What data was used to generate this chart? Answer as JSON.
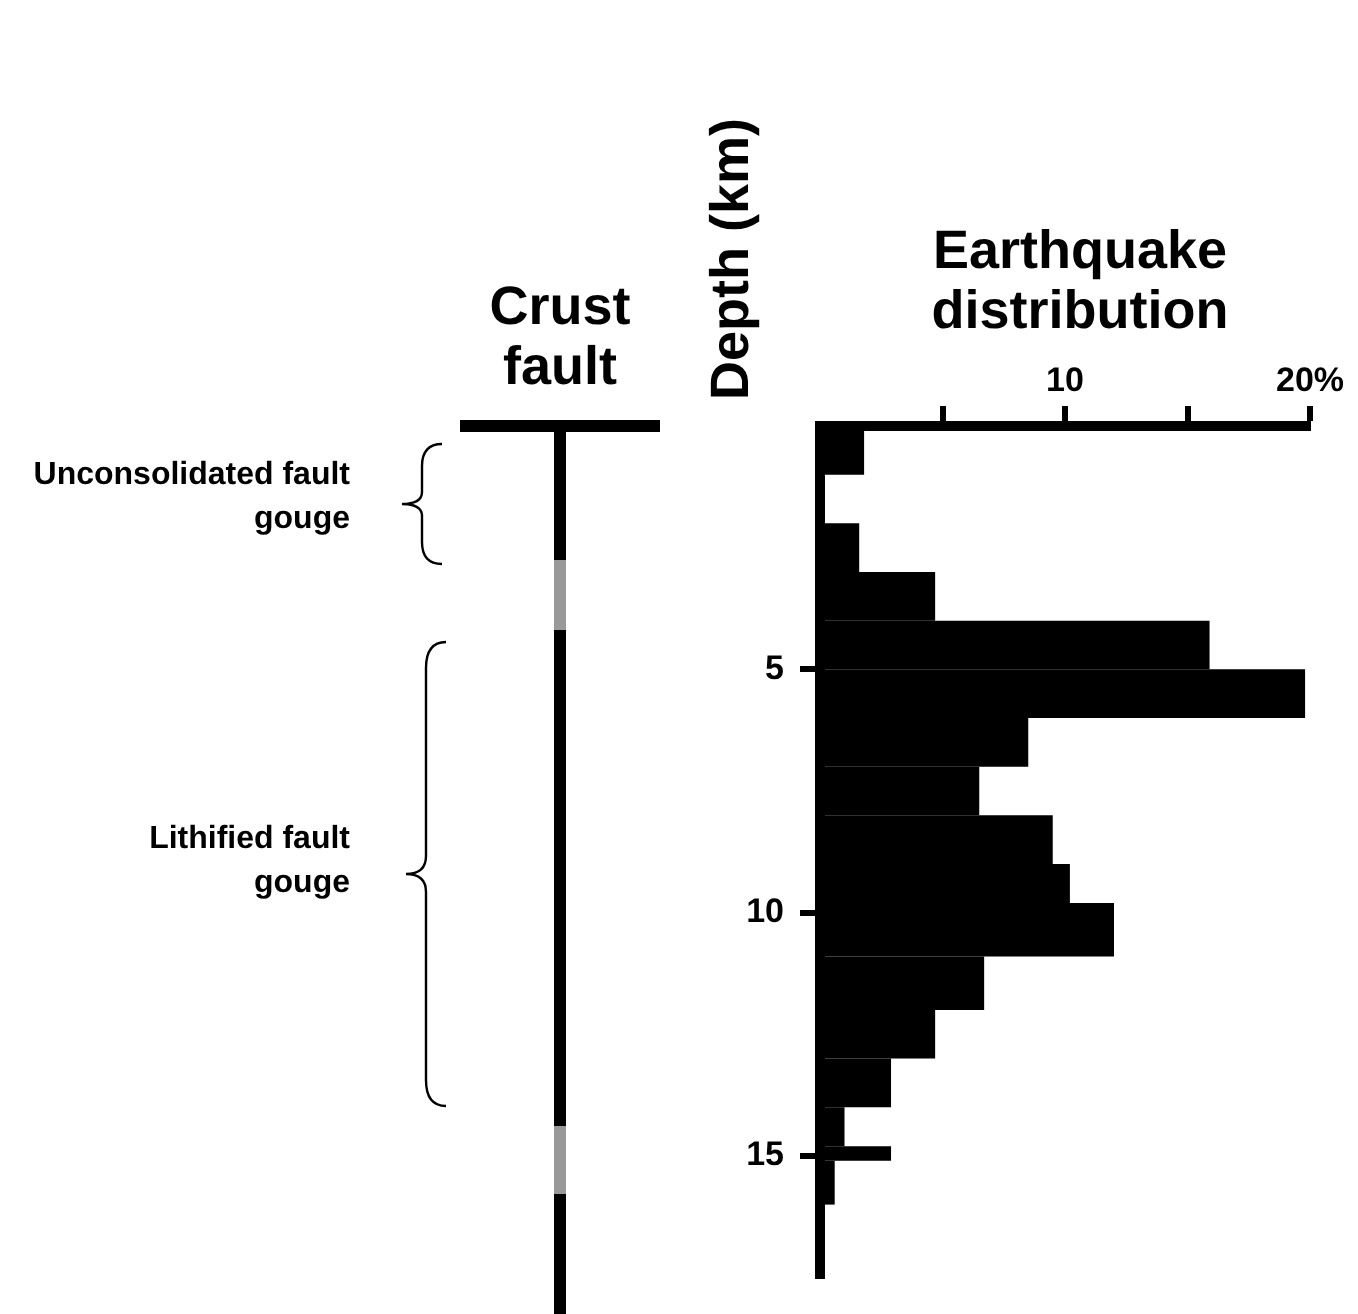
{
  "chart_data": {
    "type": "histogram",
    "orientation": "horizontal",
    "xlabel": "Earthquake distribution",
    "ylabel": "Depth (km)",
    "annotations": [
      "Crust fault",
      "Unconsolidated fault gouge",
      "Lithified fault gouge"
    ],
    "bins": [
      0,
      1,
      2,
      3,
      4,
      5,
      6,
      7,
      8,
      9,
      9.8,
      10.9,
      12,
      13,
      14,
      14.8,
      15.1,
      16,
      17
    ],
    "values": [
      1.8,
      0,
      1.6,
      4.7,
      15.9,
      19.8,
      8.5,
      6.5,
      9.5,
      10.2,
      12.0,
      6.7,
      4.7,
      2.9,
      1.0,
      2.9,
      0.6,
      0.1
    ],
    "color": "#000000",
    "xlim": [
      0,
      20
    ],
    "xticks": [
      {
        "value": 5,
        "label": null
      },
      10,
      {
        "value": 15,
        "label": null
      },
      {
        "value": 20,
        "label": "20%"
      }
    ],
    "ylim": [
      17.5,
      0
    ],
    "yticks": [
      5,
      10,
      15
    ],
    "grid": false,
    "legend": false
  }
}
